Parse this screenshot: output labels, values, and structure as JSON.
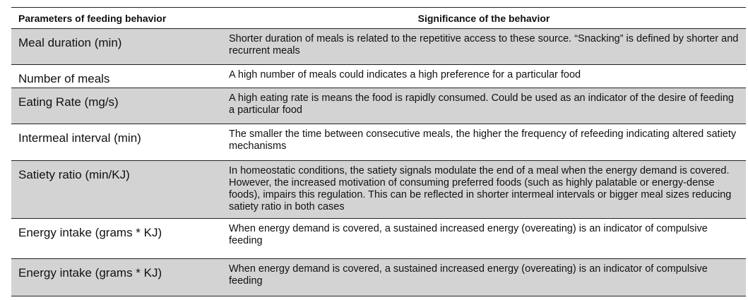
{
  "table": {
    "headers": [
      "Parameters of feeding behavior",
      "Significance of the behavior"
    ],
    "rows": [
      {
        "parameter": "Meal duration (min)",
        "significance": "Shorter duration of meals is related to the repetitive access to these source. “Snacking” is defined by shorter and recurrent meals"
      },
      {
        "parameter": "Number of meals",
        "significance": "A high number of meals could indicates a high preference for a particular food"
      },
      {
        "parameter": "Eating Rate (mg/s)",
        "significance": "A high eating rate is means the food is rapidly consumed. Could be used as an indicator of the desire of feeding a particular food"
      },
      {
        "parameter": "Intermeal interval (min)",
        "significance": "The smaller the time between consecutive meals, the higher the frequency of refeeding indicating altered satiety mechanisms"
      },
      {
        "parameter": "Satiety ratio (min/KJ)",
        "significance": "In homeostatic conditions, the satiety signals modulate the end of a meal when the energy demand is covered. However, the increased motivation of consuming preferred foods (such as highly palatable or energy-dense foods), impairs this regulation. This can be reflected in shorter intermeal intervals or bigger meal sizes reducing satiety ratio in both cases"
      },
      {
        "parameter": "Energy intake (grams * KJ)",
        "significance": "When energy demand  is covered, a sustained increased energy (overeating)  is an indicator of compulsive feeding"
      },
      {
        "parameter": "Energy intake (grams * KJ)",
        "significance": "When energy demand  is covered, a sustained increased energy (overeating)  is an indicator of compulsive feeding"
      }
    ]
  }
}
